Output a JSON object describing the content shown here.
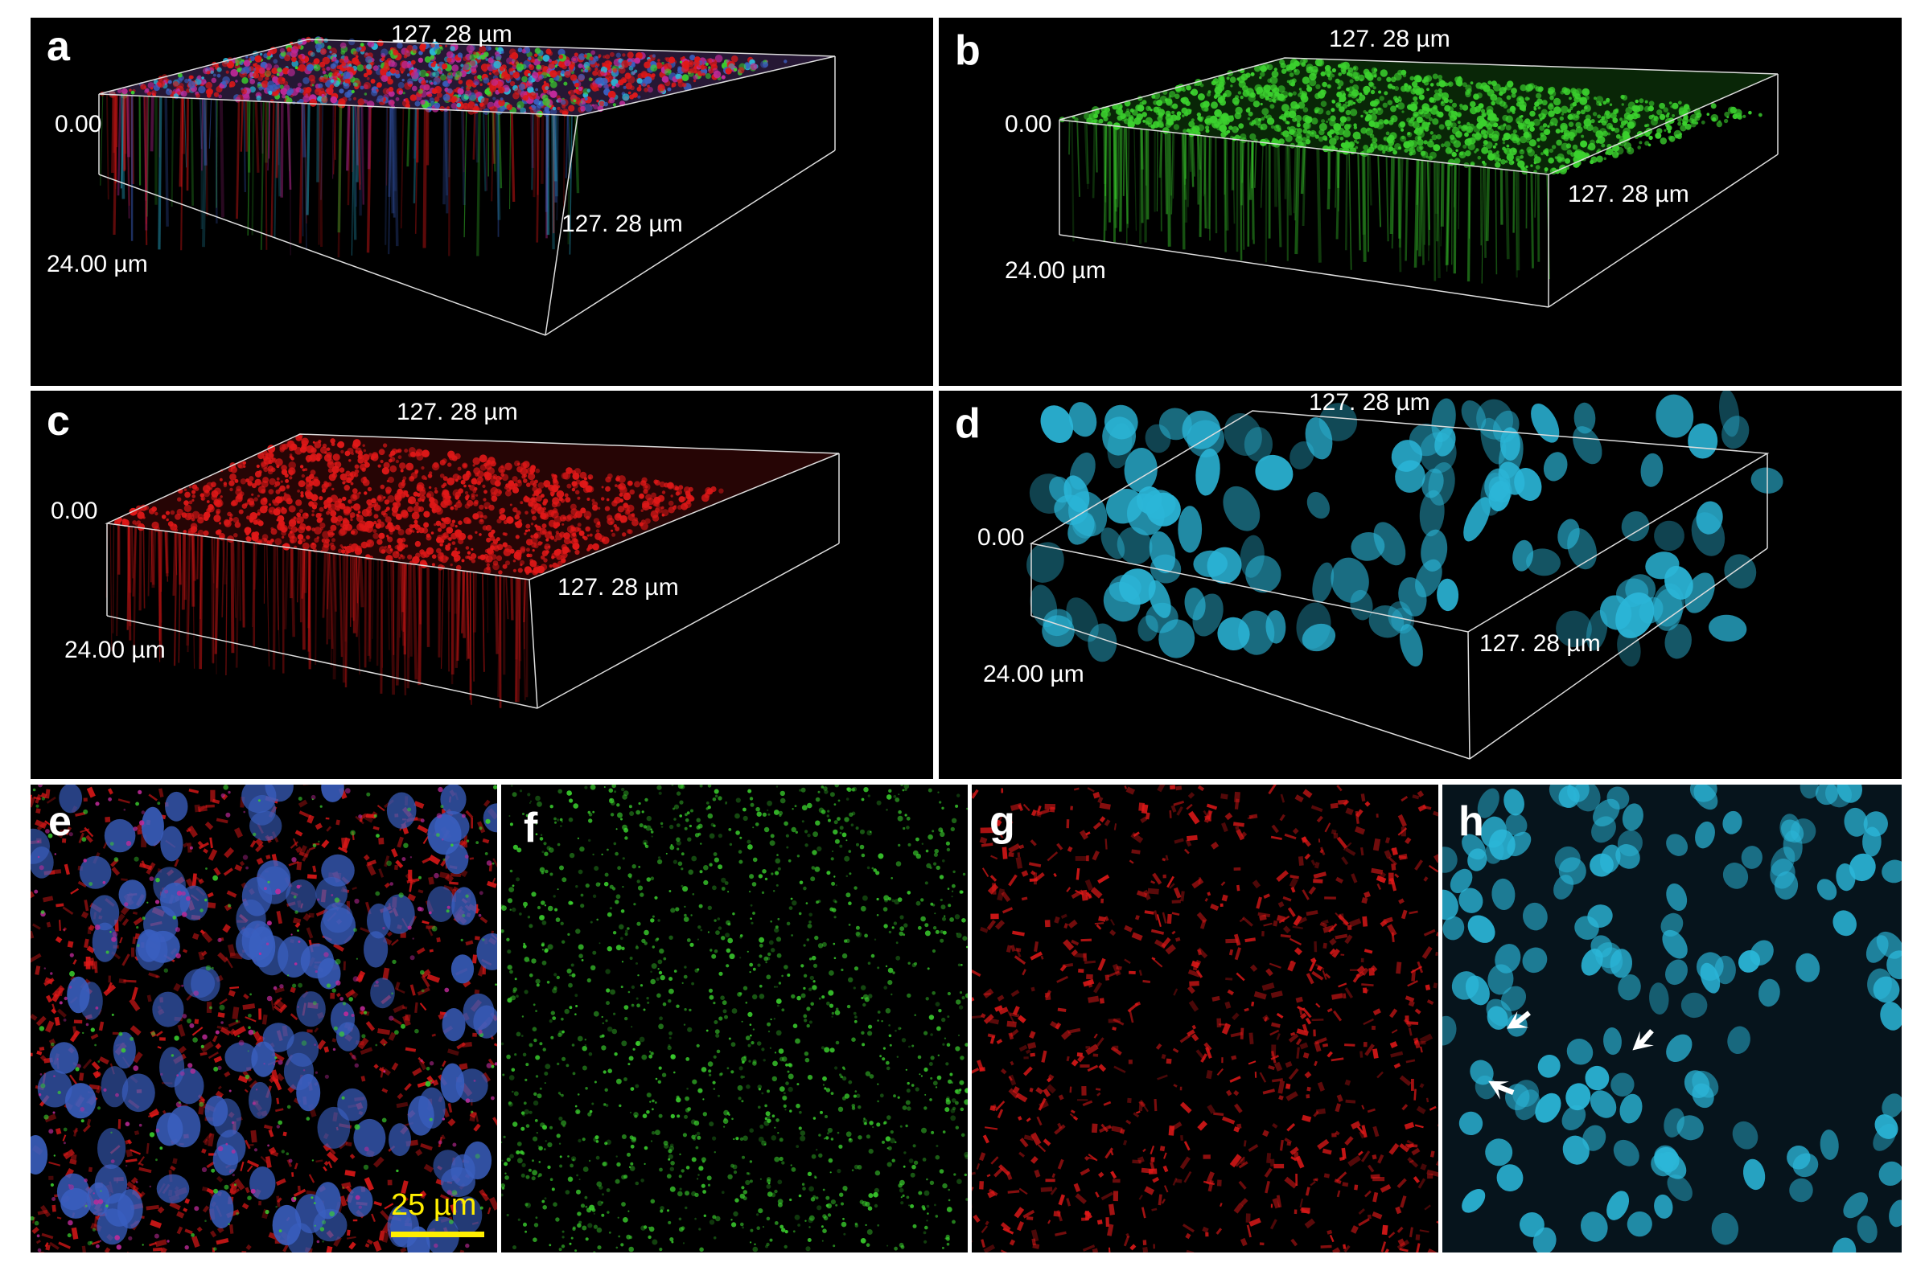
{
  "panels": {
    "a": {
      "letter": "a",
      "top_dim": "127. 28 µm",
      "origin": "0.00",
      "side_dim": "127. 28 µm",
      "depth": "24.00 µm",
      "channel": "merge"
    },
    "b": {
      "letter": "b",
      "top_dim": "127. 28 µm",
      "origin": "0.00",
      "side_dim": "127. 28 µm",
      "depth": "24.00 µm",
      "channel": "green"
    },
    "c": {
      "letter": "c",
      "top_dim": "127. 28 µm",
      "origin": "0.00",
      "side_dim": "127. 28 µm",
      "depth": "24.00 µm",
      "channel": "red"
    },
    "d": {
      "letter": "d",
      "top_dim": "127. 28 µm",
      "origin": "0.00",
      "side_dim": "127. 28 µm",
      "depth": "24.00 µm",
      "channel": "cyan"
    },
    "e": {
      "letter": "e",
      "scale_bar": "25 µm",
      "channel": "merge"
    },
    "f": {
      "letter": "f",
      "channel": "green"
    },
    "g": {
      "letter": "g",
      "channel": "red"
    },
    "h": {
      "letter": "h",
      "channel": "cyan"
    }
  },
  "colors": {
    "green": "#3bd12e",
    "red": "#e01818",
    "cyan": "#2bb6d8",
    "blue": "#3a5fc0",
    "magenta": "#c02a9a",
    "scale": "#ffee00"
  }
}
